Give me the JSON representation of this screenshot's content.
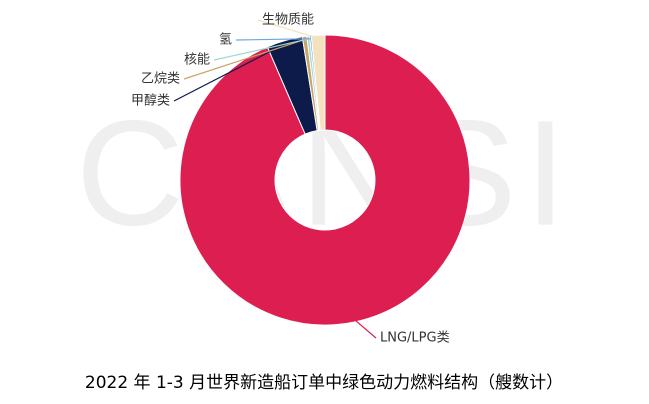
{
  "chart_data": {
    "type": "donut",
    "title": "2022 年 1-3 月世界新造船订单中绿色动力燃料结构（艘数计）",
    "watermark": "CANSI",
    "categories": [
      "LNG/LPG类",
      "甲醇类",
      "乙烷类",
      "核能",
      "氢",
      "生物质能"
    ],
    "values": [
      93.5,
      4,
      0.5,
      0.3,
      0.2,
      1.5
    ],
    "colors": [
      "#dc1f50",
      "#0d1b4b",
      "#c9a46a",
      "#9fd8d0",
      "#6fa8dc",
      "#f3e1c0"
    ]
  }
}
